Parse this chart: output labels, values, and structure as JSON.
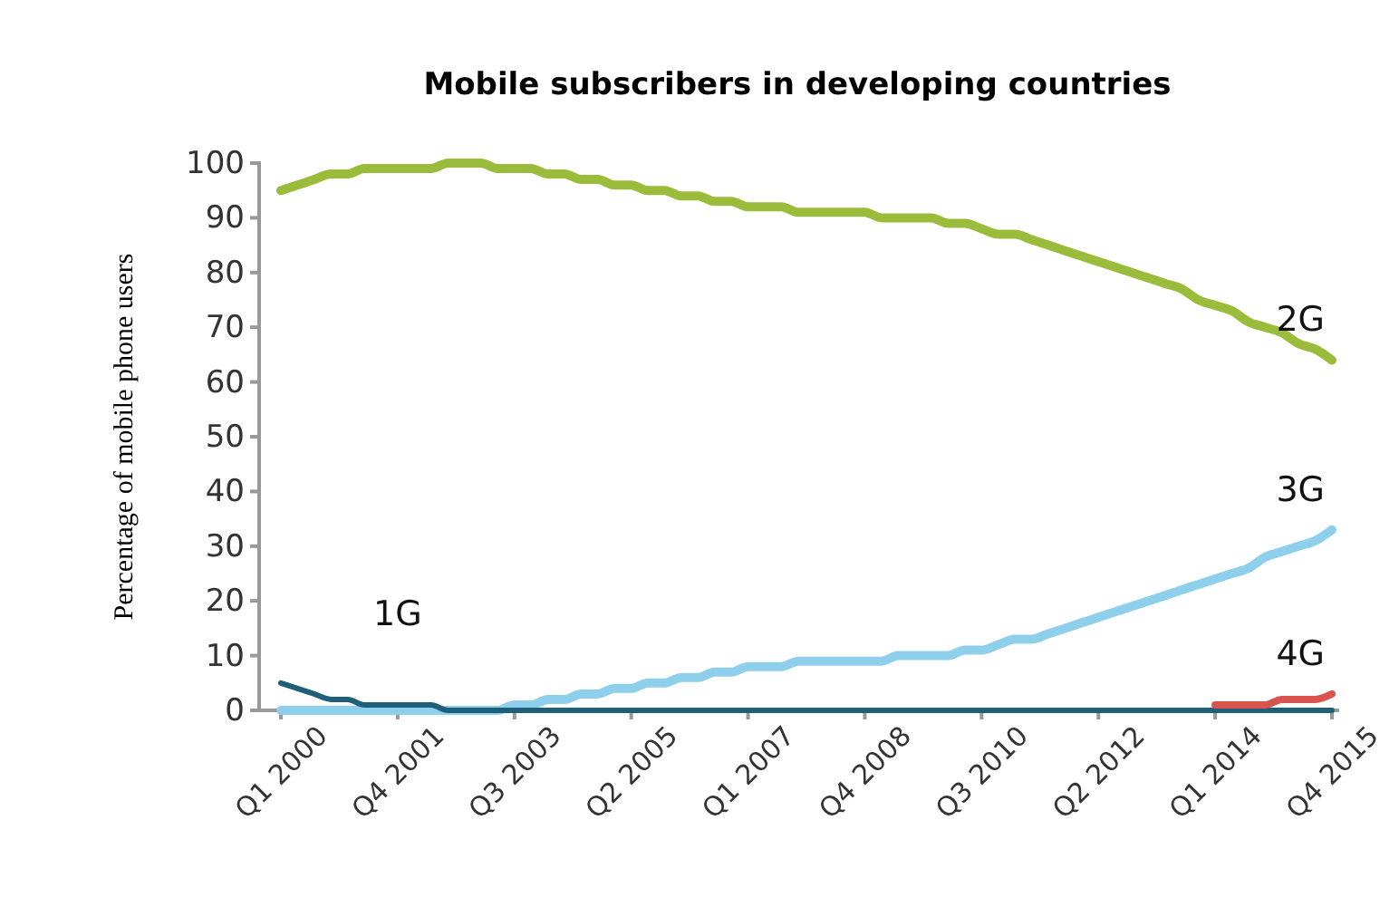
{
  "chart_data": {
    "type": "line",
    "title": "Mobile subscribers in developing countries",
    "ylabel": "Percentage of mobile phone users",
    "categories": [
      "Q1 2000",
      null,
      null,
      null,
      null,
      null,
      null,
      "Q4 2001",
      null,
      null,
      null,
      null,
      null,
      null,
      "Q3 2003",
      null,
      null,
      null,
      null,
      null,
      null,
      "Q2 2005",
      null,
      null,
      null,
      null,
      null,
      null,
      "Q1 2007",
      null,
      null,
      null,
      null,
      null,
      null,
      "Q4 2008",
      null,
      null,
      null,
      null,
      null,
      null,
      "Q3 2010",
      null,
      null,
      null,
      null,
      null,
      null,
      "Q2 2012",
      null,
      null,
      null,
      null,
      null,
      null,
      "Q1 2014",
      null,
      null,
      null,
      null,
      null,
      null,
      "Q4 2015"
    ],
    "ylim": [
      0,
      100
    ],
    "yticks": [
      0,
      10,
      20,
      30,
      40,
      50,
      60,
      70,
      80,
      90,
      100
    ],
    "grid": false,
    "legend": false,
    "series": [
      {
        "name": "2G",
        "color": "#9bbb3b",
        "values": [
          95,
          96,
          97,
          98,
          98,
          99,
          99,
          99,
          99,
          99,
          100,
          100,
          100,
          99,
          99,
          99,
          98,
          98,
          97,
          97,
          96,
          96,
          95,
          95,
          94,
          94,
          93,
          93,
          92,
          92,
          92,
          91,
          91,
          91,
          91,
          91,
          90,
          90,
          90,
          90,
          89,
          89,
          88,
          87,
          87,
          86,
          85,
          84,
          83,
          82,
          81,
          80,
          79,
          78,
          77,
          75,
          74,
          73,
          71,
          70,
          69,
          67,
          66,
          64
        ]
      },
      {
        "name": "3G",
        "color": "#8ecfec",
        "values": [
          0,
          0,
          0,
          0,
          0,
          0,
          0,
          0,
          0,
          0,
          0,
          0,
          0,
          0,
          1,
          1,
          2,
          2,
          3,
          3,
          4,
          4,
          5,
          5,
          6,
          6,
          7,
          7,
          8,
          8,
          8,
          9,
          9,
          9,
          9,
          9,
          9,
          10,
          10,
          10,
          10,
          11,
          11,
          12,
          13,
          13,
          14,
          15,
          16,
          17,
          18,
          19,
          20,
          21,
          22,
          23,
          24,
          25,
          26,
          28,
          29,
          30,
          31,
          33
        ]
      },
      {
        "name": "1G",
        "color": "#1f5f7a",
        "values": [
          5,
          4,
          3,
          2,
          2,
          1,
          1,
          1,
          1,
          1,
          0,
          0,
          0,
          0,
          0,
          0,
          0,
          0,
          0,
          0,
          0,
          0,
          0,
          0,
          0,
          0,
          0,
          0,
          0,
          0,
          0,
          0,
          0,
          0,
          0,
          0,
          0,
          0,
          0,
          0,
          0,
          0,
          0,
          0,
          0,
          0,
          0,
          0,
          0,
          0,
          0,
          0,
          0,
          0,
          0,
          0,
          0,
          0,
          0,
          0,
          0,
          0,
          0,
          0
        ]
      },
      {
        "name": "4G",
        "color": "#d9534f",
        "values": [
          null,
          null,
          null,
          null,
          null,
          null,
          null,
          null,
          null,
          null,
          null,
          null,
          null,
          null,
          null,
          null,
          null,
          null,
          null,
          null,
          null,
          null,
          null,
          null,
          null,
          null,
          null,
          null,
          null,
          null,
          null,
          null,
          null,
          null,
          null,
          null,
          null,
          null,
          null,
          null,
          null,
          null,
          null,
          null,
          null,
          null,
          null,
          null,
          null,
          null,
          null,
          null,
          null,
          null,
          null,
          null,
          1,
          1,
          1,
          1,
          2,
          2,
          2,
          3
        ]
      }
    ]
  }
}
